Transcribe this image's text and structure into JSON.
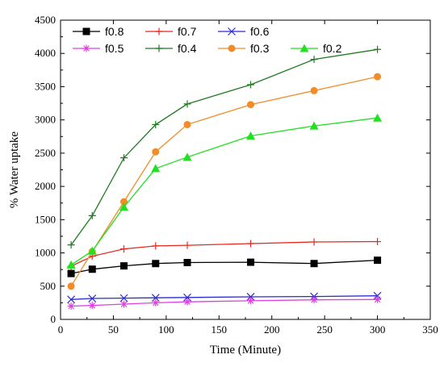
{
  "chart_data": {
    "type": "line",
    "title": "",
    "xlabel": "Time (Minute)",
    "ylabel": "% Water uptake",
    "xlim": [
      0,
      350
    ],
    "ylim": [
      0,
      4500
    ],
    "xticks": [
      0,
      50,
      100,
      150,
      200,
      250,
      300,
      350
    ],
    "yticks": [
      0,
      500,
      1000,
      1500,
      2000,
      2500,
      3000,
      3500,
      4000,
      4500
    ],
    "grid": false,
    "legend_position": "top-left",
    "x": [
      10,
      30,
      60,
      90,
      120,
      180,
      240,
      300
    ],
    "series": [
      {
        "name": "f0.8",
        "color": "#000000",
        "marker": "square",
        "values": [
          690,
          755,
          805,
          840,
          855,
          860,
          840,
          890
        ]
      },
      {
        "name": "f0.7",
        "color": "#e8281e",
        "marker": "plus",
        "values": [
          800,
          950,
          1060,
          1105,
          1115,
          1140,
          1165,
          1170
        ]
      },
      {
        "name": "f0.6",
        "color": "#2b2bd0",
        "marker": "x",
        "values": [
          300,
          315,
          320,
          325,
          330,
          340,
          345,
          355
        ]
      },
      {
        "name": "f0.5",
        "color": "#e040e0",
        "marker": "star",
        "values": [
          200,
          210,
          230,
          250,
          265,
          280,
          295,
          300
        ]
      },
      {
        "name": "f0.4",
        "color": "#1f7a1f",
        "marker": "plus",
        "values": [
          1120,
          1560,
          2430,
          2930,
          3240,
          3530,
          3910,
          4060
        ]
      },
      {
        "name": "f0.3",
        "color": "#f28c28",
        "marker": "circle",
        "values": [
          500,
          1020,
          1770,
          2520,
          2930,
          3230,
          3440,
          3650
        ]
      },
      {
        "name": "f0.2",
        "color": "#22e022",
        "marker": "triangle",
        "values": [
          820,
          1030,
          1690,
          2270,
          2440,
          2760,
          2910,
          3030
        ]
      }
    ]
  }
}
